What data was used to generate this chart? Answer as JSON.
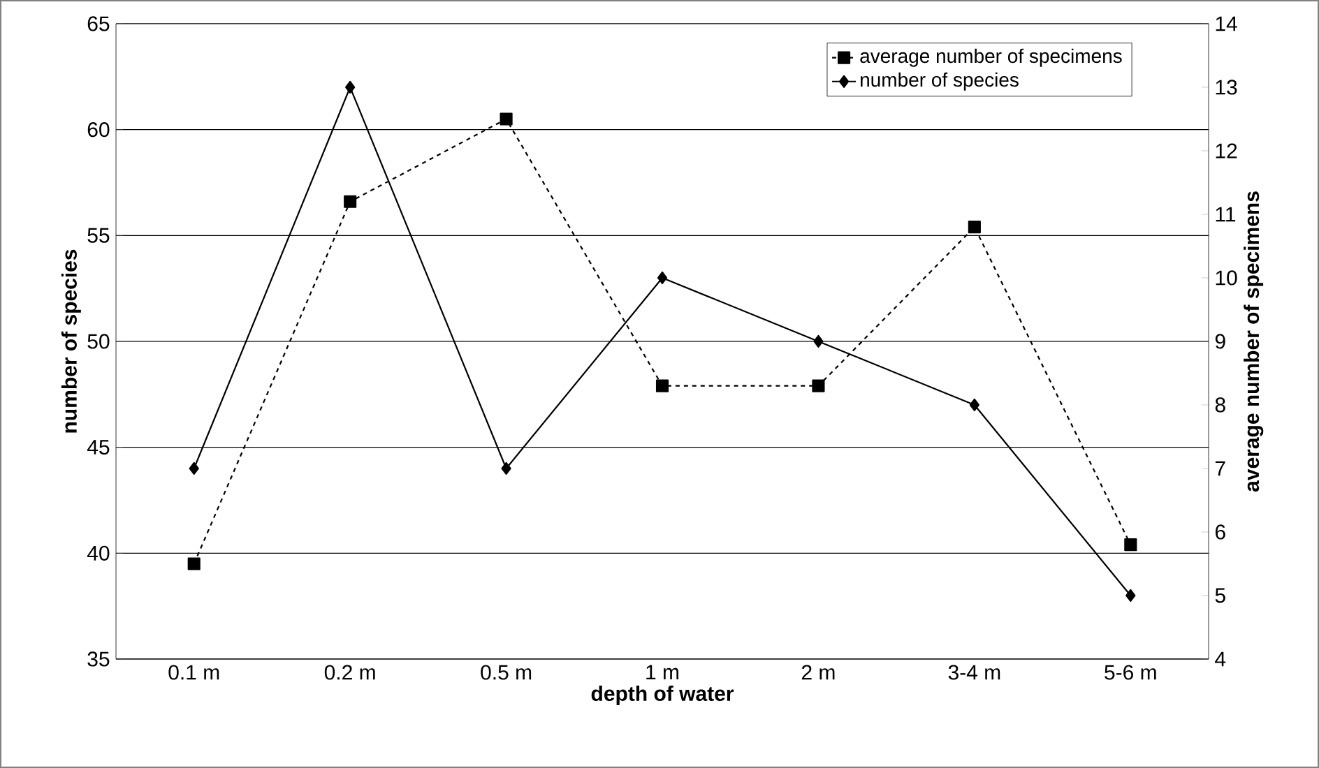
{
  "chart_data": {
    "type": "line",
    "xlabel": "depth of water",
    "ylabel": "number of species",
    "y2label": "average number of specimens",
    "categories": [
      "0.1 m",
      "0.2 m",
      "0.5 m",
      "1 m",
      "2 m",
      "3-4 m",
      "5-6 m"
    ],
    "series": [
      {
        "name": "average number of specimens",
        "color": "#000000",
        "axis": "y2",
        "marker": "square",
        "line_style": "dashed",
        "values": [
          5.5,
          11.2,
          12.5,
          8.3,
          8.3,
          10.8,
          5.8
        ]
      },
      {
        "name": "number of species",
        "color": "#000000",
        "marker": "diamond",
        "line_style": "solid",
        "values": [
          44,
          62,
          44,
          53,
          50,
          47,
          38
        ]
      }
    ],
    "ylim": [
      35,
      65
    ],
    "yticks": [
      35,
      40,
      45,
      50,
      55,
      60,
      65
    ],
    "y2lim": [
      4,
      14
    ],
    "y2ticks": [
      4,
      5,
      6,
      7,
      8,
      9,
      10,
      11,
      12,
      13,
      14
    ],
    "grid": "y",
    "legend": "top right"
  }
}
